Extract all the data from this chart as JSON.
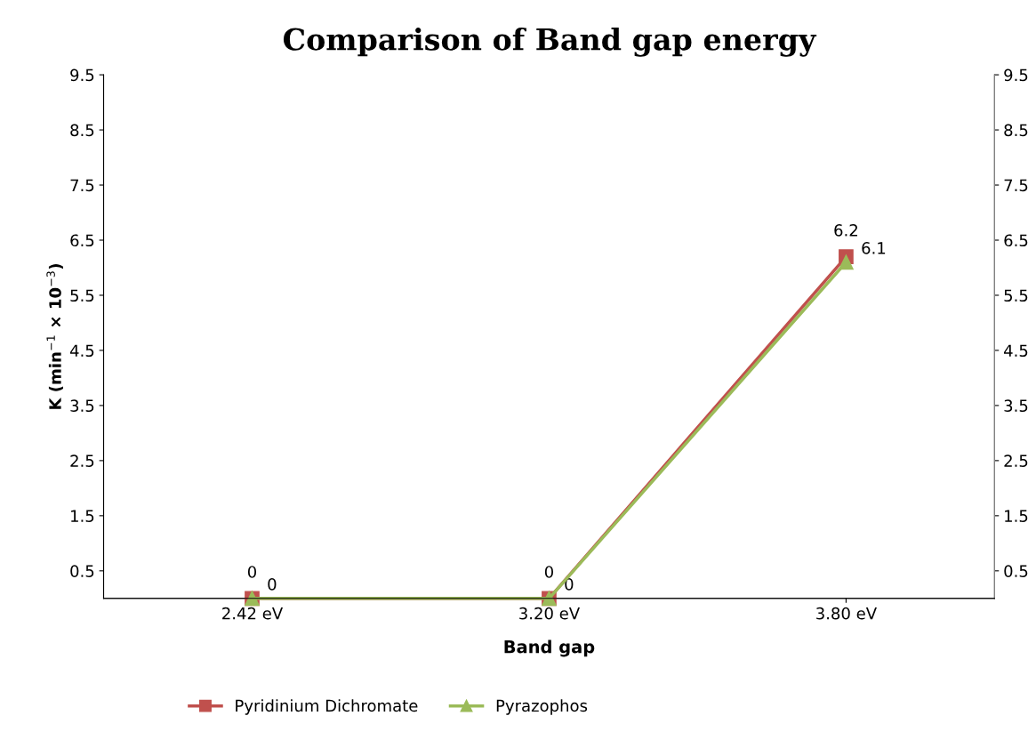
{
  "chart_data": {
    "type": "line",
    "title": "Comparison of Band gap energy",
    "xlabel": "Band gap",
    "ylabel": "K (min$^{−1}$ × 10$^{−3}$)",
    "categories": [
      "2.42 eV",
      "3.20 eV",
      "3.80 eV"
    ],
    "series": [
      {
        "name": "Pyridinium Dichromate",
        "color": "#c0504d",
        "values": [
          0,
          0,
          6.2
        ],
        "marker": "square"
      },
      {
        "name": "Pyrazophos",
        "color": "#9bbb59",
        "values": [
          0,
          0,
          6.1
        ],
        "marker": "triangle"
      }
    ],
    "ylim": [
      0,
      9.5
    ],
    "yticks": [
      0.5,
      1.5,
      2.5,
      3.5,
      4.5,
      5.5,
      6.5,
      7.5,
      8.5,
      9.5
    ],
    "y2lim": [
      0,
      9.5
    ],
    "y2ticks": [
      0.5,
      1.5,
      2.5,
      3.5,
      4.5,
      5.5,
      6.5,
      7.5,
      8.5,
      9.5
    ],
    "data_labels": true,
    "legend": "bottom",
    "grid": false
  }
}
